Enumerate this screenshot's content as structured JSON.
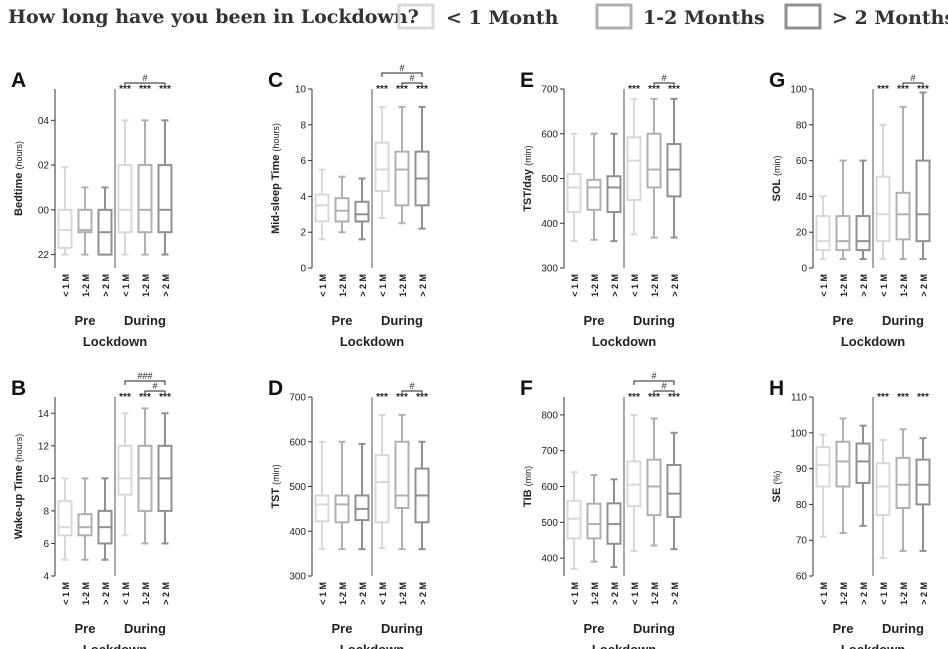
{
  "legend": {
    "title": "How long have you been in Lockdown?",
    "items": [
      {
        "label": "< 1 Month",
        "color": "#d8d8d8"
      },
      {
        "label": "1-2 Months",
        "color": "#b0b0b0"
      },
      {
        "label": "> 2 Months",
        "color": "#909090"
      }
    ]
  },
  "colors": {
    "axis": "#333333",
    "divider": "#555555"
  },
  "chart_data": [
    {
      "type": "box",
      "panel": "A",
      "ylabel": "Bedtime",
      "yunit": "(hours)",
      "ylim": [
        -2.6,
        5.4
      ],
      "yticks": [
        {
          "v": -2,
          "t": "22"
        },
        {
          "v": 0,
          "t": "00"
        },
        {
          "v": 2,
          "t": "02"
        },
        {
          "v": 4,
          "t": "04"
        }
      ],
      "categories": [
        "< 1 M",
        "1-2 M",
        "> 2 M",
        "< 1 M",
        "1-2 M",
        "> 2 M"
      ],
      "groups": [
        "Pre",
        "During"
      ],
      "xlabel": "Lockdown",
      "boxes": [
        {
          "min": -2.0,
          "q1": -1.7,
          "med": -0.9,
          "q3": 0.0,
          "max": 1.9
        },
        {
          "min": -2.0,
          "q1": -1.0,
          "med": -0.9,
          "q3": 0.0,
          "max": 1.0
        },
        {
          "min": -2.0,
          "q1": -2.0,
          "med": -1.0,
          "q3": 0.0,
          "max": 1.0
        },
        {
          "min": -2.0,
          "q1": -1.0,
          "med": 0.0,
          "q3": 2.0,
          "max": 4.0
        },
        {
          "min": -2.0,
          "q1": -1.0,
          "med": 0.0,
          "q3": 2.0,
          "max": 4.0
        },
        {
          "min": -2.0,
          "q1": -1.0,
          "med": 0.0,
          "q3": 2.0,
          "max": 4.0
        }
      ],
      "sig": [
        "***",
        "***",
        "***"
      ],
      "brackets": [
        {
          "from": 3,
          "to": 5,
          "label": "#"
        }
      ]
    },
    {
      "type": "box",
      "panel": "C",
      "ylabel": "Mid-sleep Time",
      "yunit": "(hours)",
      "ylim": [
        0,
        10
      ],
      "yticks": [
        {
          "v": 0,
          "t": "0"
        },
        {
          "v": 2,
          "t": "2"
        },
        {
          "v": 4,
          "t": "4"
        },
        {
          "v": 6,
          "t": "6"
        },
        {
          "v": 8,
          "t": "8"
        },
        {
          "v": 10,
          "t": "10"
        }
      ],
      "categories": [
        "< 1 M",
        "1-2 M",
        "> 2 M",
        "< 1 M",
        "1-2 M",
        "> 2 M"
      ],
      "groups": [
        "Pre",
        "During"
      ],
      "xlabel": "Lockdown",
      "boxes": [
        {
          "min": 1.6,
          "q1": 2.6,
          "med": 3.5,
          "q3": 4.1,
          "max": 5.5
        },
        {
          "min": 2.0,
          "q1": 2.6,
          "med": 3.2,
          "q3": 3.9,
          "max": 5.1
        },
        {
          "min": 1.6,
          "q1": 2.6,
          "med": 3.0,
          "q3": 3.7,
          "max": 5.0
        },
        {
          "min": 2.8,
          "q1": 4.3,
          "med": 5.5,
          "q3": 7.0,
          "max": 9.0
        },
        {
          "min": 2.5,
          "q1": 3.5,
          "med": 5.5,
          "q3": 6.5,
          "max": 9.0
        },
        {
          "min": 2.2,
          "q1": 3.5,
          "med": 5.0,
          "q3": 6.5,
          "max": 9.0
        }
      ],
      "sig": [
        "***",
        "***",
        "***"
      ],
      "brackets": [
        {
          "from": 3,
          "to": 5,
          "label": "#"
        },
        {
          "from": 4,
          "to": 5,
          "label": "#"
        }
      ]
    },
    {
      "type": "box",
      "panel": "E",
      "ylabel": "TST/day",
      "yunit": "(min)",
      "ylim": [
        300,
        700
      ],
      "yticks": [
        {
          "v": 300,
          "t": "300"
        },
        {
          "v": 400,
          "t": "400"
        },
        {
          "v": 500,
          "t": "500"
        },
        {
          "v": 600,
          "t": "600"
        },
        {
          "v": 700,
          "t": "700"
        }
      ],
      "categories": [
        "< 1 M",
        "1-2 M",
        "> 2 M",
        "< 1 M",
        "1-2 M",
        "> 2 M"
      ],
      "groups": [
        "Pre",
        "During"
      ],
      "xlabel": "Lockdown",
      "boxes": [
        {
          "min": 360,
          "q1": 425,
          "med": 480,
          "q3": 510,
          "max": 600
        },
        {
          "min": 363,
          "q1": 430,
          "med": 480,
          "q3": 497,
          "max": 600
        },
        {
          "min": 360,
          "q1": 425,
          "med": 480,
          "q3": 505,
          "max": 600
        },
        {
          "min": 375,
          "q1": 452,
          "med": 540,
          "q3": 592,
          "max": 678
        },
        {
          "min": 368,
          "q1": 480,
          "med": 520,
          "q3": 600,
          "max": 678
        },
        {
          "min": 368,
          "q1": 460,
          "med": 520,
          "q3": 577,
          "max": 678
        }
      ],
      "sig": [
        "***",
        "***",
        "***"
      ],
      "brackets": [
        {
          "from": 4,
          "to": 5,
          "label": "#"
        }
      ]
    },
    {
      "type": "box",
      "panel": "G",
      "ylabel": "SOL",
      "yunit": "(min)",
      "ylim": [
        0,
        100
      ],
      "yticks": [
        {
          "v": 0,
          "t": "0"
        },
        {
          "v": 20,
          "t": "20"
        },
        {
          "v": 40,
          "t": "40"
        },
        {
          "v": 60,
          "t": "60"
        },
        {
          "v": 80,
          "t": "80"
        },
        {
          "v": 100,
          "t": "100"
        }
      ],
      "categories": [
        "< 1 M",
        "1-2 M",
        "> 2 M",
        "< 1 M",
        "1-2 M",
        "> 2 M"
      ],
      "groups": [
        "Pre",
        "During"
      ],
      "xlabel": "Lockdown",
      "boxes": [
        {
          "min": 5,
          "q1": 10,
          "med": 15,
          "q3": 29,
          "max": 40
        },
        {
          "min": 5,
          "q1": 10,
          "med": 15,
          "q3": 29,
          "max": 60
        },
        {
          "min": 5,
          "q1": 10,
          "med": 15,
          "q3": 29,
          "max": 60
        },
        {
          "min": 5,
          "q1": 15,
          "med": 30,
          "q3": 51,
          "max": 80
        },
        {
          "min": 5,
          "q1": 16,
          "med": 30,
          "q3": 42,
          "max": 90
        },
        {
          "min": 5,
          "q1": 15,
          "med": 30,
          "q3": 60,
          "max": 98
        }
      ],
      "sig": [
        "***",
        "***",
        "***"
      ],
      "brackets": [
        {
          "from": 4,
          "to": 5,
          "label": "#"
        }
      ]
    },
    {
      "type": "box",
      "panel": "B",
      "ylabel": "Wake-up Time",
      "yunit": "(hours)",
      "ylim": [
        4,
        15
      ],
      "yticks": [
        {
          "v": 4,
          "t": "4"
        },
        {
          "v": 6,
          "t": "6"
        },
        {
          "v": 8,
          "t": "8"
        },
        {
          "v": 10,
          "t": "10"
        },
        {
          "v": 12,
          "t": "12"
        },
        {
          "v": 14,
          "t": "14"
        }
      ],
      "categories": [
        "< 1 M",
        "1-2 M",
        "> 2 M",
        "< 1 M",
        "1-2 M",
        "> 2 M"
      ],
      "groups": [
        "Pre",
        "During"
      ],
      "xlabel": "Lockdown",
      "boxes": [
        {
          "min": 5.0,
          "q1": 6.5,
          "med": 7.0,
          "q3": 8.6,
          "max": 10.0
        },
        {
          "min": 5.0,
          "q1": 6.5,
          "med": 7.0,
          "q3": 7.8,
          "max": 10.0
        },
        {
          "min": 5.0,
          "q1": 6.0,
          "med": 7.0,
          "q3": 8.0,
          "max": 10.0
        },
        {
          "min": 6.5,
          "q1": 9.0,
          "med": 10.0,
          "q3": 12.0,
          "max": 14.0
        },
        {
          "min": 6.0,
          "q1": 8.0,
          "med": 10.0,
          "q3": 12.0,
          "max": 14.3
        },
        {
          "min": 6.0,
          "q1": 8.0,
          "med": 10.0,
          "q3": 12.0,
          "max": 14.0
        }
      ],
      "sig": [
        "***",
        "***",
        "***"
      ],
      "brackets": [
        {
          "from": 3,
          "to": 5,
          "label": "###"
        },
        {
          "from": 4,
          "to": 5,
          "label": "#"
        }
      ]
    },
    {
      "type": "box",
      "panel": "D",
      "ylabel": "TST",
      "yunit": "(min)",
      "ylim": [
        300,
        700
      ],
      "yticks": [
        {
          "v": 300,
          "t": "300"
        },
        {
          "v": 400,
          "t": "400"
        },
        {
          "v": 500,
          "t": "500"
        },
        {
          "v": 600,
          "t": "600"
        },
        {
          "v": 700,
          "t": "700"
        }
      ],
      "categories": [
        "< 1 M",
        "1-2 M",
        "> 2 M",
        "< 1 M",
        "1-2 M",
        "> 2 M"
      ],
      "groups": [
        "Pre",
        "During"
      ],
      "xlabel": "Lockdown",
      "boxes": [
        {
          "min": 360,
          "q1": 422,
          "med": 460,
          "q3": 480,
          "max": 600
        },
        {
          "min": 360,
          "q1": 420,
          "med": 460,
          "q3": 480,
          "max": 600
        },
        {
          "min": 360,
          "q1": 425,
          "med": 450,
          "q3": 480,
          "max": 595
        },
        {
          "min": 362,
          "q1": 420,
          "med": 510,
          "q3": 570,
          "max": 660
        },
        {
          "min": 360,
          "q1": 452,
          "med": 480,
          "q3": 600,
          "max": 660
        },
        {
          "min": 360,
          "q1": 420,
          "med": 480,
          "q3": 540,
          "max": 600
        }
      ],
      "sig": [
        "***",
        "***",
        "***"
      ],
      "brackets": [
        {
          "from": 4,
          "to": 5,
          "label": "#"
        }
      ]
    },
    {
      "type": "box",
      "panel": "F",
      "ylabel": "TIB",
      "yunit": "(min)",
      "ylim": [
        350,
        850
      ],
      "yticks": [
        {
          "v": 400,
          "t": "400"
        },
        {
          "v": 500,
          "t": "500"
        },
        {
          "v": 600,
          "t": "600"
        },
        {
          "v": 700,
          "t": "700"
        },
        {
          "v": 800,
          "t": "800"
        }
      ],
      "categories": [
        "< 1 M",
        "1-2 M",
        "> 2 M",
        "< 1 M",
        "1-2 M",
        "> 2 M"
      ],
      "groups": [
        "Pre",
        "During"
      ],
      "xlabel": "Lockdown",
      "boxes": [
        {
          "min": 370,
          "q1": 455,
          "med": 510,
          "q3": 560,
          "max": 640
        },
        {
          "min": 390,
          "q1": 455,
          "med": 495,
          "q3": 552,
          "max": 632
        },
        {
          "min": 375,
          "q1": 440,
          "med": 495,
          "q3": 553,
          "max": 620
        },
        {
          "min": 420,
          "q1": 545,
          "med": 605,
          "q3": 670,
          "max": 800
        },
        {
          "min": 435,
          "q1": 520,
          "med": 600,
          "q3": 675,
          "max": 790
        },
        {
          "min": 425,
          "q1": 515,
          "med": 580,
          "q3": 660,
          "max": 750
        }
      ],
      "sig": [
        "***",
        "***",
        "***"
      ],
      "brackets": [
        {
          "from": 3,
          "to": 5,
          "label": "#"
        },
        {
          "from": 4,
          "to": 5,
          "label": "#"
        }
      ]
    },
    {
      "type": "box",
      "panel": "H",
      "ylabel": "SE",
      "yunit": "(%)",
      "ylim": [
        60,
        110
      ],
      "yticks": [
        {
          "v": 60,
          "t": "60"
        },
        {
          "v": 70,
          "t": "70"
        },
        {
          "v": 80,
          "t": "80"
        },
        {
          "v": 90,
          "t": "90"
        },
        {
          "v": 100,
          "t": "100"
        },
        {
          "v": 110,
          "t": "110"
        }
      ],
      "categories": [
        "< 1 M",
        "1-2 M",
        "> 2 M",
        "< 1 M",
        "1-2 M",
        "> 2 M"
      ],
      "groups": [
        "Pre",
        "During"
      ],
      "xlabel": "Lockdown",
      "boxes": [
        {
          "min": 71,
          "q1": 85,
          "med": 91,
          "q3": 96,
          "max": 99.5
        },
        {
          "min": 72,
          "q1": 85,
          "med": 92,
          "q3": 97.5,
          "max": 104
        },
        {
          "min": 74,
          "q1": 86,
          "med": 92,
          "q3": 97,
          "max": 102
        },
        {
          "min": 65,
          "q1": 77,
          "med": 85,
          "q3": 91.5,
          "max": 98
        },
        {
          "min": 67,
          "q1": 79,
          "med": 85.5,
          "q3": 93,
          "max": 101
        },
        {
          "min": 67,
          "q1": 80,
          "med": 85.5,
          "q3": 92.5,
          "max": 98.5
        }
      ],
      "sig": [
        "***",
        "***",
        "***"
      ],
      "brackets": []
    }
  ]
}
